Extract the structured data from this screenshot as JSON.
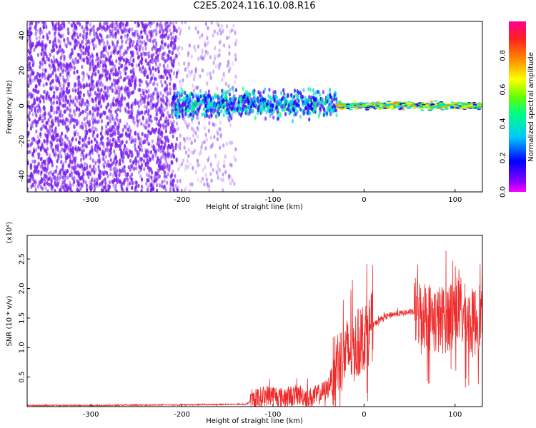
{
  "title": "C2E5.2024.116.10.08.R16",
  "colors": {
    "snr_line": "#ee2a2a",
    "spectrogram_base": "#7b22f0",
    "colorbar": [
      "#ff00ff",
      "#8a00ff",
      "#0000ff",
      "#00c8ff",
      "#00ff80",
      "#66ff00",
      "#ffff00",
      "#ff8800",
      "#ff2020",
      "#ff0090"
    ]
  },
  "chart_data": [
    {
      "type": "heatmap",
      "title": "",
      "xlabel": "Height of straight line (km)",
      "ylabel": "Frequency (Hz)",
      "xlim": [
        -370,
        130
      ],
      "ylim": [
        -49,
        48
      ],
      "x_ticks": [
        -300,
        -200,
        -100,
        0,
        100
      ],
      "y_ticks": [
        40,
        20,
        0,
        -20,
        -40
      ],
      "colorbar": {
        "label": "Normalized spectral amplitude",
        "range": [
          0.0,
          1.0
        ],
        "ticks": [
          "0.0",
          "0.2",
          "0.4",
          "0.6",
          "0.8"
        ]
      },
      "regions": [
        {
          "x_from": -370,
          "x_to": -205,
          "freq_spread": [
            -49,
            48
          ],
          "amplitude": 0.1
        },
        {
          "x_from": -205,
          "x_to": -140,
          "freq_spread": [
            -49,
            48
          ],
          "amplitude": 0.05
        },
        {
          "x_from": -210,
          "x_to": -30,
          "freq_spread": [
            -10,
            12
          ],
          "amplitude": 0.3
        },
        {
          "x_from": -30,
          "x_to": 130,
          "freq_spread": [
            -3,
            3
          ],
          "amplitude": 0.5
        }
      ]
    },
    {
      "type": "line",
      "title": "",
      "xlabel": "Height of straight line (km)",
      "ylabel": "SNR (10 * v/v)",
      "y_scale_label": "(x10⁴)",
      "xlim": [
        -370,
        130
      ],
      "ylim": [
        0,
        2.9
      ],
      "x_ticks": [
        -300,
        -200,
        -100,
        0,
        100
      ],
      "y_ticks": [
        0.5,
        1.0,
        1.5,
        2.0,
        2.5
      ],
      "series": [
        {
          "x": [
            -370,
            -300,
            -200,
            -130,
            -120,
            -110,
            -100,
            -90,
            -80,
            -70,
            -60,
            -50,
            -40,
            -30,
            -20,
            -10,
            0,
            10,
            20,
            30,
            40,
            50,
            60,
            70,
            80,
            90,
            100,
            110,
            120,
            130
          ],
          "y": [
            0.02,
            0.02,
            0.03,
            0.04,
            0.12,
            0.18,
            0.2,
            0.15,
            0.18,
            0.2,
            0.15,
            0.2,
            0.3,
            0.75,
            0.9,
            1.0,
            1.2,
            1.38,
            1.5,
            1.56,
            1.58,
            1.6,
            1.6,
            1.55,
            1.45,
            1.5,
            1.7,
            1.5,
            1.4,
            1.6
          ]
        }
      ]
    }
  ]
}
